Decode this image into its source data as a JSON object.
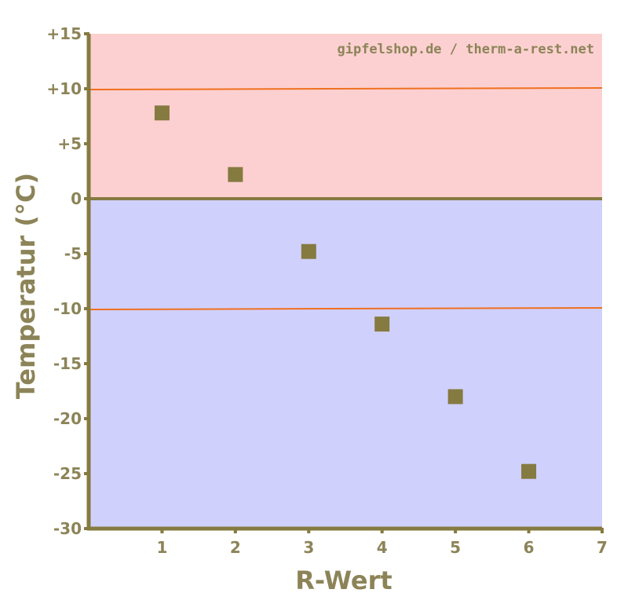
{
  "chart_data": {
    "type": "scatter",
    "title": "",
    "source_note": "gipfelshop.de / therm-a-rest.net",
    "xlabel": "R-Wert",
    "ylabel": "Temperatur (°C)",
    "xlim": [
      0,
      7
    ],
    "ylim": [
      -30,
      15
    ],
    "x_ticks": [
      1,
      2,
      3,
      4,
      5,
      6,
      7
    ],
    "x_tick_labels": [
      "1",
      "2",
      "3",
      "4",
      "5",
      "6",
      "7"
    ],
    "y_ticks": [
      15,
      10,
      5,
      0,
      -5,
      -10,
      -15,
      -20,
      -25,
      -30
    ],
    "y_tick_labels": [
      "+15",
      "+10",
      "+5",
      "0",
      "-5",
      "-10",
      "-15",
      "-20",
      "-25",
      "-30"
    ],
    "series": [
      {
        "x": [
          1,
          2,
          3,
          4,
          5,
          6
        ],
        "y": [
          7.8,
          2.2,
          -4.8,
          -11.4,
          -18,
          -24.8
        ],
        "color": "#857a40"
      }
    ],
    "reference_lines": [
      {
        "y": 10,
        "color": "#f07020"
      },
      {
        "y": -10,
        "color": "#f07020"
      }
    ],
    "bands": [
      {
        "from": 0,
        "to": 15,
        "color": "#fcd0d0"
      },
      {
        "from": -30,
        "to": 0,
        "color": "#d0d0fc"
      }
    ],
    "zero_line_color": "#857a40",
    "axis_color": "#857a40",
    "tick_label_color": "#8c8458",
    "grid": false,
    "legend": "none"
  }
}
